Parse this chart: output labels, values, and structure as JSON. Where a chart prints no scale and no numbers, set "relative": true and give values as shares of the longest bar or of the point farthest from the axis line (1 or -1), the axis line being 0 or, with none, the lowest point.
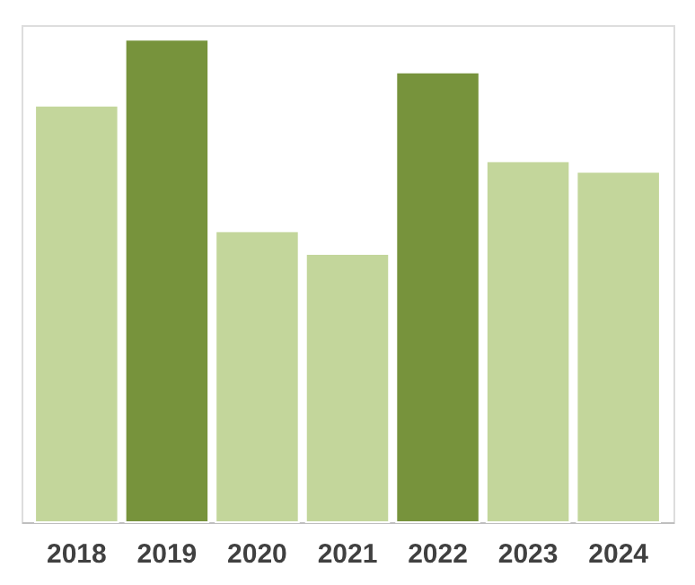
{
  "chart_data": {
    "type": "bar",
    "relative": true,
    "categories": [
      "2018",
      "2019",
      "2020",
      "2021",
      "2022",
      "2023",
      "2024"
    ],
    "values": [
      0.863,
      1,
      0.603,
      0.556,
      0.932,
      0.748,
      0.726
    ],
    "colors": [
      "#c3d69b",
      "#77933c",
      "#c3d69b",
      "#c3d69b",
      "#77933c",
      "#c3d69b",
      "#c3d69b"
    ],
    "grid": false
  }
}
